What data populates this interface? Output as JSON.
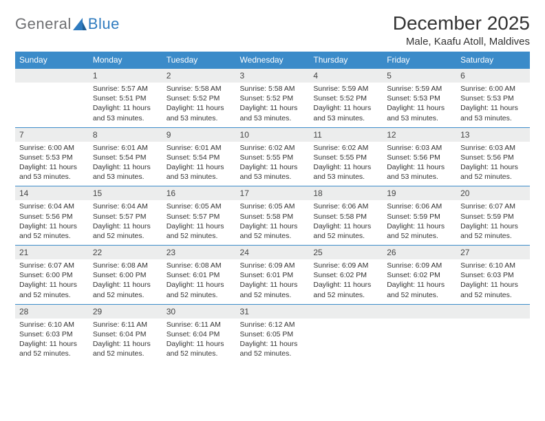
{
  "logo": {
    "text1": "General",
    "text2": "Blue"
  },
  "title": "December 2025",
  "location": "Male, Kaafu Atoll, Maldives",
  "colors": {
    "header_bg": "#3b8bc9",
    "header_fg": "#ffffff",
    "daynum_bg": "#eceded",
    "border": "#3b8bc9",
    "logo_gray": "#6d6e71",
    "logo_blue": "#2f7bbf",
    "text": "#333333"
  },
  "weekdays": [
    "Sunday",
    "Monday",
    "Tuesday",
    "Wednesday",
    "Thursday",
    "Friday",
    "Saturday"
  ],
  "weeks": [
    {
      "nums": [
        "",
        "1",
        "2",
        "3",
        "4",
        "5",
        "6"
      ],
      "cells": [
        null,
        {
          "sunrise": "5:57 AM",
          "sunset": "5:51 PM",
          "daylight": "11 hours and 53 minutes."
        },
        {
          "sunrise": "5:58 AM",
          "sunset": "5:52 PM",
          "daylight": "11 hours and 53 minutes."
        },
        {
          "sunrise": "5:58 AM",
          "sunset": "5:52 PM",
          "daylight": "11 hours and 53 minutes."
        },
        {
          "sunrise": "5:59 AM",
          "sunset": "5:52 PM",
          "daylight": "11 hours and 53 minutes."
        },
        {
          "sunrise": "5:59 AM",
          "sunset": "5:53 PM",
          "daylight": "11 hours and 53 minutes."
        },
        {
          "sunrise": "6:00 AM",
          "sunset": "5:53 PM",
          "daylight": "11 hours and 53 minutes."
        }
      ]
    },
    {
      "nums": [
        "7",
        "8",
        "9",
        "10",
        "11",
        "12",
        "13"
      ],
      "cells": [
        {
          "sunrise": "6:00 AM",
          "sunset": "5:53 PM",
          "daylight": "11 hours and 53 minutes."
        },
        {
          "sunrise": "6:01 AM",
          "sunset": "5:54 PM",
          "daylight": "11 hours and 53 minutes."
        },
        {
          "sunrise": "6:01 AM",
          "sunset": "5:54 PM",
          "daylight": "11 hours and 53 minutes."
        },
        {
          "sunrise": "6:02 AM",
          "sunset": "5:55 PM",
          "daylight": "11 hours and 53 minutes."
        },
        {
          "sunrise": "6:02 AM",
          "sunset": "5:55 PM",
          "daylight": "11 hours and 53 minutes."
        },
        {
          "sunrise": "6:03 AM",
          "sunset": "5:56 PM",
          "daylight": "11 hours and 53 minutes."
        },
        {
          "sunrise": "6:03 AM",
          "sunset": "5:56 PM",
          "daylight": "11 hours and 52 minutes."
        }
      ]
    },
    {
      "nums": [
        "14",
        "15",
        "16",
        "17",
        "18",
        "19",
        "20"
      ],
      "cells": [
        {
          "sunrise": "6:04 AM",
          "sunset": "5:56 PM",
          "daylight": "11 hours and 52 minutes."
        },
        {
          "sunrise": "6:04 AM",
          "sunset": "5:57 PM",
          "daylight": "11 hours and 52 minutes."
        },
        {
          "sunrise": "6:05 AM",
          "sunset": "5:57 PM",
          "daylight": "11 hours and 52 minutes."
        },
        {
          "sunrise": "6:05 AM",
          "sunset": "5:58 PM",
          "daylight": "11 hours and 52 minutes."
        },
        {
          "sunrise": "6:06 AM",
          "sunset": "5:58 PM",
          "daylight": "11 hours and 52 minutes."
        },
        {
          "sunrise": "6:06 AM",
          "sunset": "5:59 PM",
          "daylight": "11 hours and 52 minutes."
        },
        {
          "sunrise": "6:07 AM",
          "sunset": "5:59 PM",
          "daylight": "11 hours and 52 minutes."
        }
      ]
    },
    {
      "nums": [
        "21",
        "22",
        "23",
        "24",
        "25",
        "26",
        "27"
      ],
      "cells": [
        {
          "sunrise": "6:07 AM",
          "sunset": "6:00 PM",
          "daylight": "11 hours and 52 minutes."
        },
        {
          "sunrise": "6:08 AM",
          "sunset": "6:00 PM",
          "daylight": "11 hours and 52 minutes."
        },
        {
          "sunrise": "6:08 AM",
          "sunset": "6:01 PM",
          "daylight": "11 hours and 52 minutes."
        },
        {
          "sunrise": "6:09 AM",
          "sunset": "6:01 PM",
          "daylight": "11 hours and 52 minutes."
        },
        {
          "sunrise": "6:09 AM",
          "sunset": "6:02 PM",
          "daylight": "11 hours and 52 minutes."
        },
        {
          "sunrise": "6:09 AM",
          "sunset": "6:02 PM",
          "daylight": "11 hours and 52 minutes."
        },
        {
          "sunrise": "6:10 AM",
          "sunset": "6:03 PM",
          "daylight": "11 hours and 52 minutes."
        }
      ]
    },
    {
      "nums": [
        "28",
        "29",
        "30",
        "31",
        "",
        "",
        ""
      ],
      "cells": [
        {
          "sunrise": "6:10 AM",
          "sunset": "6:03 PM",
          "daylight": "11 hours and 52 minutes."
        },
        {
          "sunrise": "6:11 AM",
          "sunset": "6:04 PM",
          "daylight": "11 hours and 52 minutes."
        },
        {
          "sunrise": "6:11 AM",
          "sunset": "6:04 PM",
          "daylight": "11 hours and 52 minutes."
        },
        {
          "sunrise": "6:12 AM",
          "sunset": "6:05 PM",
          "daylight": "11 hours and 52 minutes."
        },
        null,
        null,
        null
      ]
    }
  ],
  "labels": {
    "sunrise": "Sunrise:",
    "sunset": "Sunset:",
    "daylight": "Daylight:"
  }
}
